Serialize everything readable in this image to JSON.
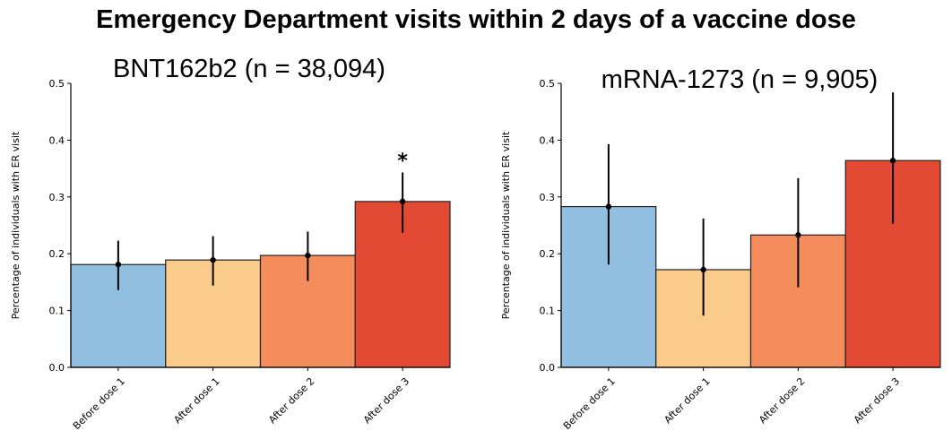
{
  "title": "Emergency Department visits within 2 days of a vaccine dose",
  "chart_data": [
    {
      "type": "bar",
      "title": "BNT162b2 (n = 38,094)",
      "ylabel": "Percentage of individuals with ER visit",
      "xlabel": "",
      "ylim": [
        0,
        0.5
      ],
      "yticks": [
        "0.0",
        "0.1",
        "0.2",
        "0.3",
        "0.4",
        "0.5"
      ],
      "categories": [
        "Before dose 1",
        "After dose 1",
        "After dose 2",
        "After dose 3"
      ],
      "values": [
        0.181,
        0.189,
        0.197,
        0.292
      ],
      "error_low": [
        0.136,
        0.144,
        0.152,
        0.237
      ],
      "error_high": [
        0.223,
        0.231,
        0.239,
        0.343
      ],
      "colors": [
        "#92bfdf",
        "#fbcb8c",
        "#f48c5c",
        "#e34a33"
      ],
      "annotations": [
        {
          "category_index": 3,
          "text": "*"
        }
      ],
      "grid": false
    },
    {
      "type": "bar",
      "title": "mRNA-1273 (n = 9,905)",
      "ylabel": "Percentage of individuals with ER visit",
      "xlabel": "",
      "ylim": [
        0,
        0.5
      ],
      "yticks": [
        "0.0",
        "0.1",
        "0.2",
        "0.3",
        "0.4",
        "0.5"
      ],
      "categories": [
        "Before dose 1",
        "After dose 1",
        "After dose 2",
        "After dose 3"
      ],
      "values": [
        0.283,
        0.172,
        0.233,
        0.364
      ],
      "error_low": [
        0.181,
        0.091,
        0.141,
        0.253
      ],
      "error_high": [
        0.393,
        0.262,
        0.333,
        0.484
      ],
      "colors": [
        "#92bfdf",
        "#fbcb8c",
        "#f48c5c",
        "#e34a33"
      ],
      "annotations": [],
      "grid": false
    }
  ]
}
